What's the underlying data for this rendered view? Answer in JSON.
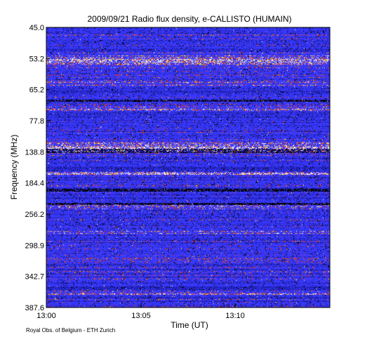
{
  "chart_data": {
    "type": "heatmap",
    "title": "2009/09/21  Radio flux density, e-CALLISTO (HUMAIN)",
    "xlabel": "Time (UT)",
    "ylabel": "Frequency (MHz)",
    "x_ticks": [
      "13:00",
      "13:05",
      "13:10"
    ],
    "y_ticks": [
      "45.0",
      "53.2",
      "65.2",
      "77.8",
      "138.8",
      "184.4",
      "256.2",
      "298.9",
      "342.7",
      "387.6"
    ],
    "colormap": [
      "#000000",
      "#1a1aa0",
      "#2a2ad8",
      "#3a3aff",
      "#ff3a00",
      "#ffc000",
      "#ffffff"
    ],
    "grid": false
  },
  "credit": "Royal Obs. of Belgium - ETH Zurich"
}
